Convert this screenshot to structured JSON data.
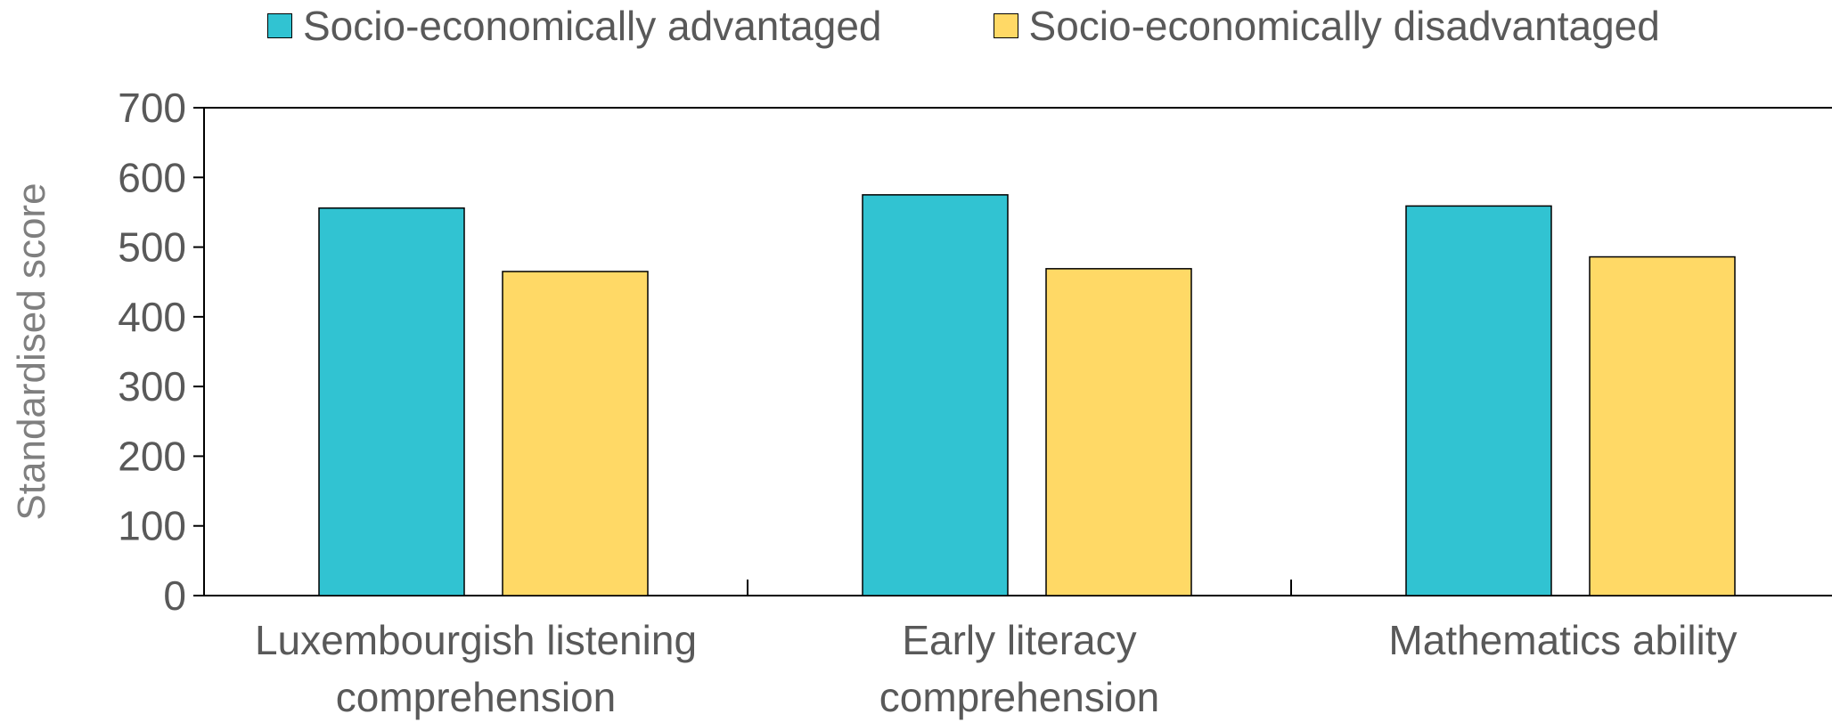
{
  "chart_data": {
    "type": "bar",
    "categories": [
      [
        "Luxembourgish listening",
        "comprehension"
      ],
      [
        "Early literacy",
        "comprehension"
      ],
      [
        "Mathematics ability"
      ]
    ],
    "series": [
      {
        "name": "Socio-economically advantaged",
        "color": "#31C3D2",
        "values": [
          556,
          575,
          559
        ]
      },
      {
        "name": "Socio-economically disadvantaged",
        "color": "#FFD966",
        "values": [
          465,
          469,
          486
        ]
      }
    ],
    "ylabel": "Standardised score",
    "xlabel": "",
    "ylim": [
      0,
      700
    ],
    "yticks": [
      0,
      100,
      200,
      300,
      400,
      500,
      600,
      700
    ],
    "grid": false,
    "legend_position": "top"
  }
}
